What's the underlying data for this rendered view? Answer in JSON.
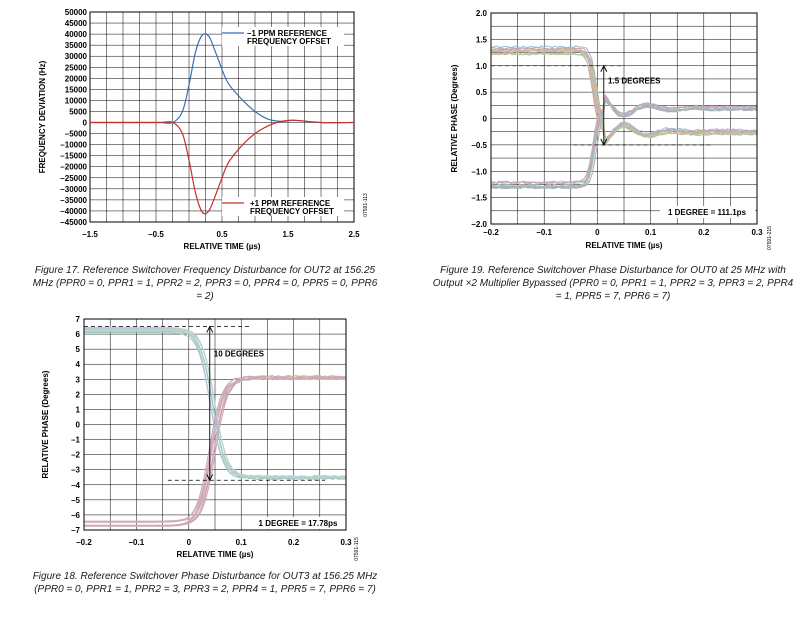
{
  "colors": {
    "blue": "#3a6fb5",
    "red": "#c4302b",
    "grid": "#000000"
  },
  "charts": [
    {
      "id": "fig17",
      "caption": "Figure 17. Reference Switchover Frequency Disturbance for OUT2 at 156.25 MHz (PPR0 = 0, PPR1 = 1, PPR2 = 2, PPR3 = 0, PPR4 = 0, PPR5 = 0, PPR6 = 2)",
      "code": "07591-113"
    },
    {
      "id": "fig19",
      "caption": "Figure 19. Reference Switchover Phase Disturbance for OUT0 at 25 MHz with Output ×2 Multiplier Bypassed (PPR0 = 0, PPR1 = 1, PPR2 = 3, PPR3 = 2, PPR4 = 1, PPR5 = 7, PPR6 = 7)",
      "code": "07591-215"
    },
    {
      "id": "fig18",
      "caption": "Figure 18. Reference Switchover Phase Disturbance for OUT3 at 156.25 MHz (PPR0 = 0, PPR1 = 1, PPR2 = 3, PPR3 = 2, PPR4 = 1, PPR5 = 7, PPR6 = 7)",
      "code": "07591-115"
    }
  ],
  "chart_data": [
    {
      "type": "line",
      "xlabel": "RELATIVE TIME (µs)",
      "ylabel": "FREQUENCY DEVIATION (Hz)",
      "xlim": [
        -1.5,
        2.5
      ],
      "ylim": [
        -45000,
        50000
      ],
      "xticks": [
        -1.5,
        -0.5,
        0.5,
        1.5,
        2.5
      ],
      "xtick_labels": [
        "–1.5",
        "–0.5",
        "0.5",
        "1.5",
        "2.5"
      ],
      "ytick_labels": [
        "50000",
        "45000",
        "40000",
        "35000",
        "30000",
        "25000",
        "20000",
        "15000",
        "10000",
        "5000",
        "0",
        "–5000",
        "–10000",
        "–15000",
        "–20000",
        "–25000",
        "–30000",
        "–35000",
        "–40000",
        "–45000"
      ],
      "grid": true,
      "legend": "top-right / bottom-right annotations",
      "series": [
        {
          "name": "–1 PPM REFERENCE FREQUENCY OFFSET",
          "color": "blue",
          "x": [
            -1.5,
            -0.5,
            -0.25,
            -0.1,
            0.0,
            0.1,
            0.2,
            0.3,
            0.4,
            0.5,
            0.6,
            0.8,
            1.0,
            1.2,
            1.4,
            1.6,
            2.0,
            2.5
          ],
          "y": [
            0,
            0,
            0,
            5000,
            17000,
            32000,
            39500,
            39000,
            32000,
            24000,
            17500,
            10500,
            5000,
            1500,
            500,
            1000,
            0,
            0
          ]
        },
        {
          "name": "+1 PPM REFERENCE FREQUENCY OFFSET",
          "color": "red",
          "x": [
            -1.5,
            -0.5,
            -0.25,
            -0.1,
            0.0,
            0.1,
            0.2,
            0.3,
            0.4,
            0.5,
            0.6,
            0.8,
            1.0,
            1.2,
            1.4,
            1.6,
            2.0,
            2.5
          ],
          "y": [
            0,
            0,
            0,
            -5000,
            -17000,
            -32000,
            -40500,
            -40000,
            -33000,
            -25000,
            -18000,
            -10500,
            -5000,
            -1500,
            500,
            1000,
            0,
            0
          ]
        }
      ],
      "annotations": [
        "–1 PPM REFERENCE",
        "FREQUENCY OFFSET",
        "+1 PPM REFERENCE",
        "FREQUENCY OFFSET"
      ]
    },
    {
      "type": "line",
      "xlabel": "RELATIVE TIME (µs)",
      "ylabel": "RELATIVE PHASE (Degrees)",
      "xlim": [
        -0.2,
        0.3
      ],
      "ylim": [
        -2.0,
        2.0
      ],
      "xtick_labels": [
        "–0.2",
        "–0.1",
        "0",
        "0.1",
        "0.2",
        "0.3"
      ],
      "ytick_labels": [
        "2.0",
        "1.5",
        "1.0",
        "0.5",
        "0",
        "–0.5",
        "–1.0",
        "–1.5",
        "–2.0"
      ],
      "grid": true,
      "series_description": "many overlaid traces",
      "upper_band": {
        "start": 1.3,
        "end": -0.25
      },
      "lower_band": {
        "start": -1.25,
        "end": 0.2
      },
      "annotations": [
        "1.5 DEGREES",
        "1 DEGREE = 111.1ps"
      ]
    },
    {
      "type": "line",
      "xlabel": "RELATIVE TIME (µs)",
      "ylabel": "RELATIVE PHASE (Degrees)",
      "xlim": [
        -0.2,
        0.3
      ],
      "ylim": [
        -7,
        7
      ],
      "xtick_labels": [
        "–0.2",
        "–0.1",
        "0",
        "0.1",
        "0.2",
        "0.3"
      ],
      "ytick_labels": [
        "7",
        "6",
        "5",
        "4",
        "3",
        "2",
        "1",
        "0",
        "–1",
        "–2",
        "–3",
        "–4",
        "–5",
        "–6",
        "–7"
      ],
      "grid": true,
      "series_description": "many overlaid traces",
      "upper_band": {
        "start": 6.3,
        "end": -3.5
      },
      "lower_band": {
        "start": -6.6,
        "end": 3.1
      },
      "annotations": [
        "10 DEGREES",
        "1 DEGREE = 17.78ps"
      ]
    }
  ]
}
